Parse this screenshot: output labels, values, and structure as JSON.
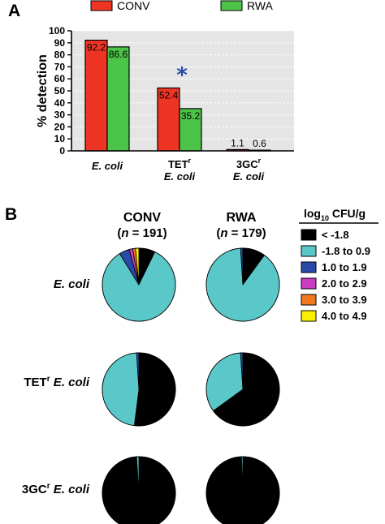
{
  "panels": {
    "a": "A",
    "b": "B"
  },
  "colors": {
    "conv": "#ee3524",
    "rwa": "#4cc448",
    "star": "#2a4aa8",
    "plot_bg": "#e5e5e5",
    "grid": "#ffffff",
    "black": "#000000",
    "cyan": "#5ac8c8",
    "blue": "#2a4aa8",
    "magenta": "#c83cc0",
    "orange": "#f07820",
    "yellow": "#f8f000"
  },
  "chart_data": [
    {
      "type": "bar",
      "ylabel": "% detection",
      "ylim": [
        0,
        100
      ],
      "yticks": [
        0,
        10,
        20,
        30,
        40,
        50,
        60,
        70,
        80,
        90,
        100
      ],
      "grid": true,
      "legend_position": "top",
      "categories": [
        {
          "main": "E. coli",
          "pre": "",
          "sup": "",
          "italic": "E. coli"
        },
        {
          "main": "TET",
          "pre": "TET",
          "sup": "r",
          "italic": "E. coli"
        },
        {
          "main": "3GC",
          "pre": "3GC",
          "sup": "r",
          "italic": "E. coli"
        }
      ],
      "series": [
        {
          "name": "CONV",
          "values": [
            92.2,
            52.4,
            1.1
          ],
          "labels": [
            "92.2",
            "52.4",
            "1.1"
          ]
        },
        {
          "name": "RWA",
          "values": [
            86.6,
            35.2,
            0.6
          ],
          "labels": [
            "86.6",
            "35.2",
            "0.6"
          ]
        }
      ],
      "annotations": [
        {
          "text": "*",
          "category_index": 1,
          "y": 67
        }
      ]
    },
    {
      "type": "pie",
      "columns": [
        {
          "name": "CONV",
          "n_prefix": "(",
          "n_symbol": "n",
          "n_value": " = 191)"
        },
        {
          "name": "RWA",
          "n_prefix": "(",
          "n_symbol": "n",
          "n_value": " = 179)"
        }
      ],
      "rows": [
        {
          "pre": "",
          "sup": "",
          "italic": "E. coli"
        },
        {
          "pre": "TET",
          "sup": "r",
          "italic": " E. coli"
        },
        {
          "pre": "3GC",
          "sup": "r",
          "italic": " E. coli"
        }
      ],
      "legend_title": {
        "pre": "log",
        "sub": "10",
        "post": " CFU/g"
      },
      "legend": [
        {
          "label": "< -1.8",
          "color": "#000000"
        },
        {
          "label": "-1.8 to 0.9",
          "color": "#5ac8c8"
        },
        {
          "label": "1.0 to 1.9",
          "color": "#2a4aa8"
        },
        {
          "label": "2.0 to 2.9",
          "color": "#c83cc0"
        },
        {
          "label": "3.0 to 3.9",
          "color": "#f07820"
        },
        {
          "label": "4.0 to 4.9",
          "color": "#f8f000"
        }
      ],
      "pies": [
        [
          [
            0.072,
            0.84,
            0.045,
            0.016,
            0.012,
            0.015
          ],
          [
            0.1,
            0.89,
            0.01,
            0.0,
            0.0,
            0.0
          ]
        ],
        [
          [
            0.52,
            0.47,
            0.01,
            0.0,
            0.0,
            0.0
          ],
          [
            0.65,
            0.34,
            0.01,
            0.0,
            0.0,
            0.0
          ]
        ],
        [
          [
            0.99,
            0.01,
            0.0,
            0.0,
            0.0,
            0.0
          ],
          [
            0.994,
            0.006,
            0.0,
            0.0,
            0.0,
            0.0
          ]
        ]
      ]
    }
  ]
}
